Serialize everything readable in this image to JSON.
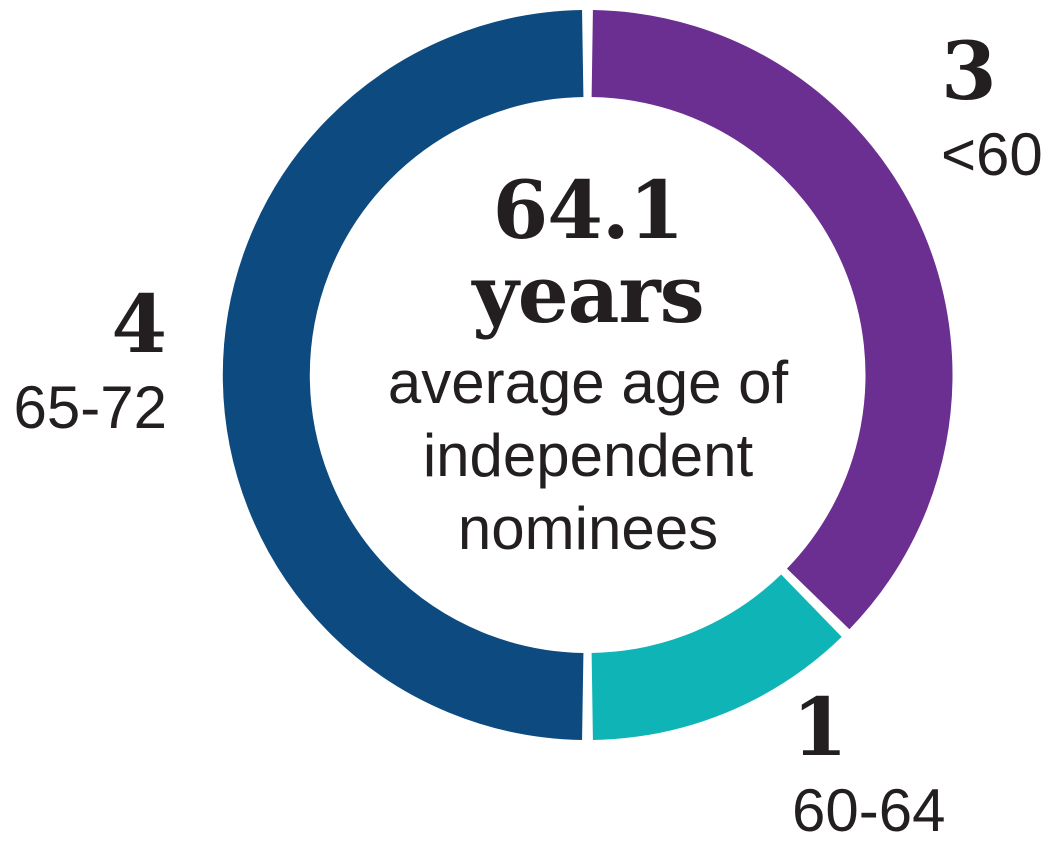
{
  "chart_data": {
    "type": "pie",
    "variant": "donut",
    "center": {
      "value": "64.1",
      "unit": "years",
      "caption": "average age of independent nominees",
      "caption_lines": [
        "average age of",
        "independent",
        "nominees"
      ]
    },
    "segments": [
      {
        "label": "<60",
        "value": 3,
        "color": "#6B2E91"
      },
      {
        "label": "60-64",
        "value": 1,
        "color": "#0FB5B6"
      },
      {
        "label": "65-72",
        "value": 4,
        "color": "#0C4A80"
      }
    ],
    "start_angle_deg": 0,
    "direction": "clockwise",
    "legend_position": "around-ring",
    "background": "#FFFFFF",
    "text_color": "#231F20",
    "separator_color": "#FFFFFF"
  }
}
